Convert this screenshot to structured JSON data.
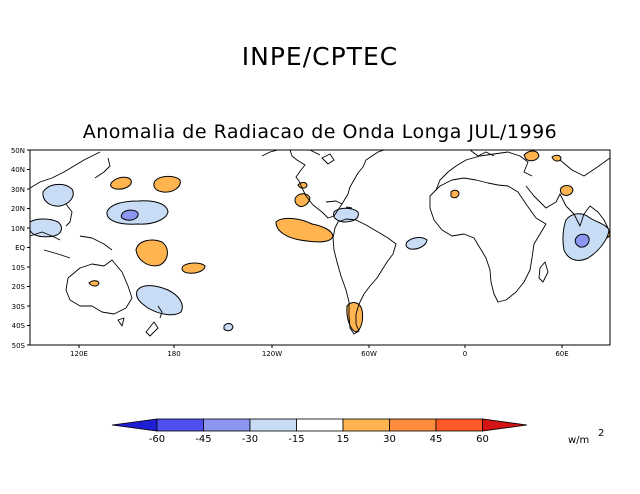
{
  "header": {
    "title": "INPE/CPTEC"
  },
  "map": {
    "title": "Anomalia de Radiacao de Onda Longa JUL/1996",
    "lat_labels": [
      "50N",
      "40N",
      "30N",
      "20N",
      "10N",
      "EQ",
      "10S",
      "20S",
      "30S",
      "40S",
      "50S"
    ],
    "lon_labels": [
      "120E",
      "180",
      "120W",
      "60W",
      "0",
      "60E"
    ]
  },
  "colorbar": {
    "levels": [
      "-60",
      "-45",
      "-30",
      "-15",
      "15",
      "30",
      "45",
      "60"
    ],
    "colors": [
      "#1e1ed2",
      "#4f4ff0",
      "#8c96f0",
      "#c8dcf5",
      "#ffffff",
      "#ffb450",
      "#ff8c3c",
      "#ff5a28",
      "#d21414"
    ],
    "units": "w/m",
    "units_exp": "2"
  }
}
